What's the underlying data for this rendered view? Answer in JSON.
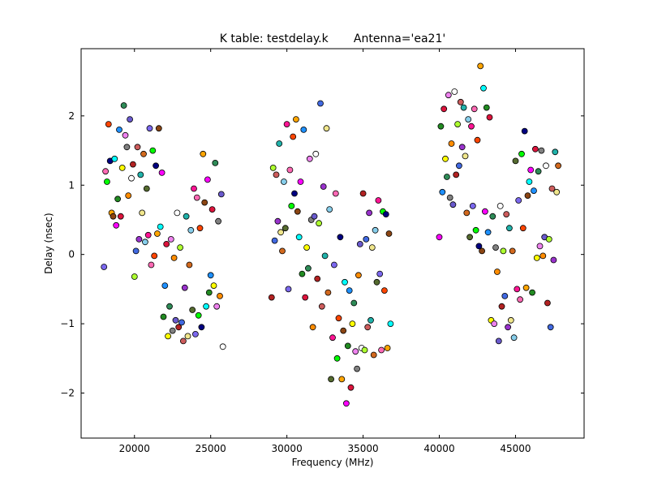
{
  "chart_data": {
    "type": "scatter",
    "title": "K table: testdelay.k       Antenna='ea21'",
    "xlabel": "Frequency (MHz)",
    "ylabel": "Delay (nsec)",
    "xlim": [
      16500,
      49500
    ],
    "ylim": [
      -2.65,
      2.97
    ],
    "xticks": [
      20000,
      25000,
      30000,
      35000,
      40000,
      45000
    ],
    "yticks": [
      -2,
      -1,
      0,
      1,
      2
    ],
    "ytick_labels": [
      "−2",
      "−1",
      "0",
      "1",
      "2"
    ],
    "grid": false,
    "legend": "none",
    "marker": "circle",
    "series_colors": [
      "#7b68ee",
      "#ff69b4",
      "#00ff00",
      "#ff4500",
      "#000080",
      "#ffa500",
      "#8b4513",
      "#00ffff",
      "#ff00ff",
      "#228b22",
      "#1e90ff",
      "#dc143c",
      "#ffff00",
      "#2e8b57",
      "#ee82ee",
      "#808080",
      "#ff8c00",
      "#6a5acd",
      "#ffffff",
      "#b22222",
      "#adff2f",
      "#4169e1",
      "#cd5c5c",
      "#9932cc",
      "#20b2aa",
      "#f0e68c",
      "#d2691e",
      "#87ceeb",
      "#556b2f",
      "#ff1493"
    ],
    "points": [
      [
        18000,
        -0.18
      ],
      [
        18100,
        1.2
      ],
      [
        18200,
        1.05
      ],
      [
        18300,
        1.88
      ],
      [
        18400,
        1.35
      ],
      [
        18500,
        0.6
      ],
      [
        18600,
        0.55
      ],
      [
        18700,
        1.38
      ],
      [
        18800,
        0.42
      ],
      [
        18900,
        0.8
      ],
      [
        19000,
        1.8
      ],
      [
        19100,
        0.55
      ],
      [
        19200,
        1.25
      ],
      [
        19300,
        2.15
      ],
      [
        19400,
        1.72
      ],
      [
        19500,
        1.55
      ],
      [
        19600,
        0.85
      ],
      [
        19700,
        1.95
      ],
      [
        19800,
        1.1
      ],
      [
        19900,
        1.3
      ],
      [
        20000,
        -0.32
      ],
      [
        20100,
        0.05
      ],
      [
        20200,
        1.55
      ],
      [
        20300,
        0.22
      ],
      [
        20400,
        1.15
      ],
      [
        20500,
        0.6
      ],
      [
        20600,
        1.45
      ],
      [
        20700,
        0.18
      ],
      [
        20800,
        0.95
      ],
      [
        20900,
        0.28
      ],
      [
        21000,
        1.82
      ],
      [
        21100,
        -0.15
      ],
      [
        21200,
        1.5
      ],
      [
        21300,
        -0.02
      ],
      [
        21400,
        1.28
      ],
      [
        21500,
        0.3
      ],
      [
        21600,
        1.82
      ],
      [
        21700,
        0.4
      ],
      [
        21800,
        1.18
      ],
      [
        21900,
        -0.9
      ],
      [
        22000,
        -0.45
      ],
      [
        22100,
        0.15
      ],
      [
        22200,
        -1.18
      ],
      [
        22300,
        -0.75
      ],
      [
        22400,
        0.22
      ],
      [
        22500,
        -1.1
      ],
      [
        22600,
        -0.05
      ],
      [
        22700,
        -0.95
      ],
      [
        22800,
        0.6
      ],
      [
        22900,
        -1.05
      ],
      [
        23000,
        0.1
      ],
      [
        23100,
        -0.98
      ],
      [
        23200,
        -1.25
      ],
      [
        23300,
        -0.48
      ],
      [
        23400,
        0.55
      ],
      [
        23500,
        -1.18
      ],
      [
        23600,
        -0.15
      ],
      [
        23700,
        0.35
      ],
      [
        23800,
        -0.8
      ],
      [
        23900,
        0.95
      ],
      [
        24000,
        -1.15
      ],
      [
        24100,
        0.82
      ],
      [
        24200,
        -0.88
      ],
      [
        24300,
        0.38
      ],
      [
        24400,
        -1.05
      ],
      [
        24500,
        1.45
      ],
      [
        24600,
        0.75
      ],
      [
        24700,
        -0.75
      ],
      [
        24800,
        1.08
      ],
      [
        24900,
        -0.55
      ],
      [
        25000,
        -0.3
      ],
      [
        25100,
        0.65
      ],
      [
        25200,
        -0.45
      ],
      [
        25300,
        1.32
      ],
      [
        25400,
        -0.75
      ],
      [
        25500,
        0.48
      ],
      [
        25600,
        -0.6
      ],
      [
        25700,
        0.87
      ],
      [
        25800,
        -1.33
      ],
      [
        29000,
        -0.62
      ],
      [
        29100,
        1.25
      ],
      [
        29200,
        0.2
      ],
      [
        29300,
        1.15
      ],
      [
        29400,
        0.48
      ],
      [
        29500,
        1.6
      ],
      [
        29600,
        0.32
      ],
      [
        29700,
        0.05
      ],
      [
        29800,
        1.05
      ],
      [
        29900,
        0.38
      ],
      [
        30000,
        1.88
      ],
      [
        30100,
        -0.5
      ],
      [
        30200,
        1.22
      ],
      [
        30300,
        0.7
      ],
      [
        30400,
        1.7
      ],
      [
        30500,
        0.88
      ],
      [
        30600,
        1.95
      ],
      [
        30700,
        0.62
      ],
      [
        30800,
        0.25
      ],
      [
        30900,
        1.05
      ],
      [
        31000,
        -0.28
      ],
      [
        31100,
        1.8
      ],
      [
        31200,
        -0.62
      ],
      [
        31300,
        0.1
      ],
      [
        31400,
        -0.2
      ],
      [
        31500,
        1.38
      ],
      [
        31600,
        0.5
      ],
      [
        31700,
        -1.05
      ],
      [
        31800,
        0.55
      ],
      [
        31900,
        1.45
      ],
      [
        32000,
        -0.35
      ],
      [
        32100,
        0.45
      ],
      [
        32200,
        2.18
      ],
      [
        32300,
        -0.75
      ],
      [
        32400,
        0.98
      ],
      [
        32500,
        -0.02
      ],
      [
        32600,
        1.82
      ],
      [
        32700,
        -0.55
      ],
      [
        32800,
        0.65
      ],
      [
        32900,
        -1.8
      ],
      [
        33000,
        -1.2
      ],
      [
        33100,
        -0.15
      ],
      [
        33200,
        0.88
      ],
      [
        33300,
        -1.5
      ],
      [
        33400,
        -0.92
      ],
      [
        33500,
        0.25
      ],
      [
        33600,
        -1.8
      ],
      [
        33700,
        -1.1
      ],
      [
        33800,
        -0.4
      ],
      [
        33900,
        -2.15
      ],
      [
        34000,
        -1.32
      ],
      [
        34100,
        -0.52
      ],
      [
        34200,
        -1.92
      ],
      [
        34300,
        -1.0
      ],
      [
        34400,
        -0.7
      ],
      [
        34500,
        -1.4
      ],
      [
        34600,
        -1.65
      ],
      [
        34700,
        -0.3
      ],
      [
        34800,
        0.15
      ],
      [
        34900,
        -1.35
      ],
      [
        35000,
        0.88
      ],
      [
        35100,
        -1.38
      ],
      [
        35200,
        0.22
      ],
      [
        35300,
        -1.05
      ],
      [
        35400,
        0.6
      ],
      [
        35500,
        -0.95
      ],
      [
        35600,
        0.1
      ],
      [
        35700,
        -1.45
      ],
      [
        35800,
        0.35
      ],
      [
        35900,
        -0.4
      ],
      [
        36000,
        0.78
      ],
      [
        36100,
        -0.28
      ],
      [
        36200,
        -1.38
      ],
      [
        36300,
        0.62
      ],
      [
        36400,
        -0.52
      ],
      [
        36500,
        0.58
      ],
      [
        36600,
        -1.35
      ],
      [
        36700,
        0.3
      ],
      [
        36800,
        -1.0
      ],
      [
        40000,
        0.25
      ],
      [
        40100,
        1.85
      ],
      [
        40200,
        0.9
      ],
      [
        40300,
        2.1
      ],
      [
        40400,
        1.38
      ],
      [
        40500,
        1.12
      ],
      [
        40600,
        2.3
      ],
      [
        40700,
        0.82
      ],
      [
        40800,
        1.6
      ],
      [
        40900,
        0.72
      ],
      [
        41000,
        2.35
      ],
      [
        41100,
        1.15
      ],
      [
        41200,
        1.88
      ],
      [
        41300,
        1.28
      ],
      [
        41400,
        2.2
      ],
      [
        41500,
        1.55
      ],
      [
        41600,
        2.12
      ],
      [
        41700,
        1.42
      ],
      [
        41800,
        0.6
      ],
      [
        41900,
        1.95
      ],
      [
        42000,
        0.25
      ],
      [
        42100,
        1.85
      ],
      [
        42200,
        0.7
      ],
      [
        42300,
        2.1
      ],
      [
        42400,
        0.35
      ],
      [
        42500,
        1.65
      ],
      [
        42600,
        0.12
      ],
      [
        42700,
        2.72
      ],
      [
        42800,
        0.05
      ],
      [
        42900,
        2.4
      ],
      [
        43000,
        0.62
      ],
      [
        43100,
        2.12
      ],
      [
        43200,
        0.32
      ],
      [
        43300,
        1.98
      ],
      [
        43400,
        -0.95
      ],
      [
        43500,
        0.55
      ],
      [
        43600,
        -1.0
      ],
      [
        43700,
        0.1
      ],
      [
        43800,
        -0.25
      ],
      [
        43900,
        -1.25
      ],
      [
        44000,
        0.7
      ],
      [
        44100,
        -0.75
      ],
      [
        44200,
        0.05
      ],
      [
        44300,
        -0.6
      ],
      [
        44400,
        0.58
      ],
      [
        44500,
        -1.05
      ],
      [
        44600,
        0.38
      ],
      [
        44700,
        -0.95
      ],
      [
        44800,
        0.05
      ],
      [
        44900,
        -1.2
      ],
      [
        45000,
        1.35
      ],
      [
        45100,
        -0.5
      ],
      [
        45200,
        0.78
      ],
      [
        45300,
        -0.65
      ],
      [
        45400,
        1.45
      ],
      [
        45500,
        0.38
      ],
      [
        45600,
        1.78
      ],
      [
        45700,
        -0.48
      ],
      [
        45800,
        0.85
      ],
      [
        45900,
        1.05
      ],
      [
        46000,
        1.22
      ],
      [
        46100,
        -0.55
      ],
      [
        46200,
        0.92
      ],
      [
        46300,
        1.52
      ],
      [
        46400,
        -0.05
      ],
      [
        46500,
        1.2
      ],
      [
        46600,
        0.12
      ],
      [
        46700,
        1.5
      ],
      [
        46800,
        -0.02
      ],
      [
        46900,
        0.25
      ],
      [
        47000,
        1.28
      ],
      [
        47100,
        -0.7
      ],
      [
        47200,
        0.22
      ],
      [
        47300,
        -1.05
      ],
      [
        47400,
        0.95
      ],
      [
        47500,
        -0.08
      ],
      [
        47600,
        1.48
      ],
      [
        47700,
        0.9
      ],
      [
        47800,
        1.28
      ]
    ]
  }
}
